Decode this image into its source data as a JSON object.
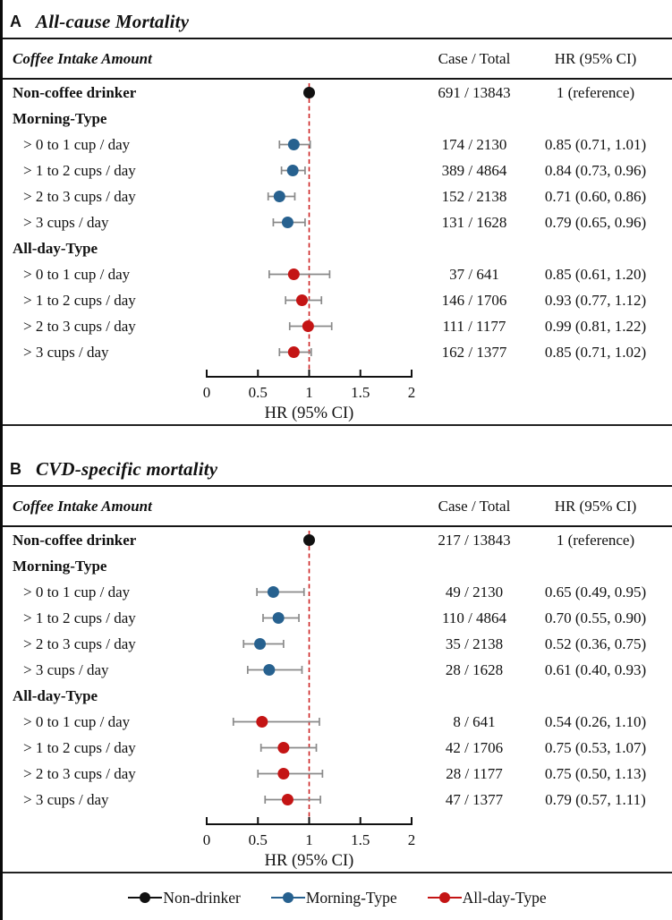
{
  "figure": {
    "colors": {
      "black": "#111111",
      "blue": "#27618f",
      "red": "#c41414",
      "ref_line": "#cc2222",
      "error_bar": "#8a8a8a",
      "axis": "#111111"
    }
  },
  "panels": [
    {
      "letter": "A",
      "title": "All-cause Mortality",
      "columns": {
        "label": "Coffee Intake Amount",
        "case": "Case / Total",
        "hr": "HR (95% CI)"
      },
      "rows": [
        {
          "label": "Non-coffee drinker",
          "case": "691 / 13843",
          "hr": "1 (reference)"
        },
        {
          "label": "Morning-Type"
        },
        {
          "label": "> 0 to 1 cup / day",
          "case": "174 / 2130",
          "hr": "0.85 (0.71, 1.01)"
        },
        {
          "label": "> 1 to 2 cups / day",
          "case": "389 / 4864",
          "hr": "0.84 (0.73, 0.96)"
        },
        {
          "label": "> 2 to 3 cups / day",
          "case": "152 / 2138",
          "hr": "0.71 (0.60, 0.86)"
        },
        {
          "label": "> 3 cups / day",
          "case": "131 / 1628",
          "hr": "0.79 (0.65, 0.96)"
        },
        {
          "label": "All-day-Type"
        },
        {
          "label": "> 0 to 1 cup / day",
          "case": "37 / 641",
          "hr": "0.85 (0.61, 1.20)"
        },
        {
          "label": "> 1 to 2 cups / day",
          "case": "146 / 1706",
          "hr": "0.93 (0.77, 1.12)"
        },
        {
          "label": "> 2 to 3 cups / day",
          "case": "111 / 1177",
          "hr": "0.99 (0.81, 1.22)"
        },
        {
          "label": "> 3 cups / day",
          "case": "162 / 1377",
          "hr": "0.85 (0.71, 1.02)"
        }
      ]
    },
    {
      "letter": "B",
      "title": "CVD-specific mortality",
      "columns": {
        "label": "Coffee Intake Amount",
        "case": "Case / Total",
        "hr": "HR (95% CI)"
      },
      "rows": [
        {
          "label": "Non-coffee drinker",
          "case": "217 / 13843",
          "hr": "1 (reference)"
        },
        {
          "label": "Morning-Type"
        },
        {
          "label": "> 0 to 1 cup / day",
          "case": "49 / 2130",
          "hr": "0.65 (0.49, 0.95)"
        },
        {
          "label": "> 1 to 2 cups / day",
          "case": "110 / 4864",
          "hr": "0.70 (0.55, 0.90)"
        },
        {
          "label": "> 2 to 3 cups / day",
          "case": "35 / 2138",
          "hr": "0.52 (0.36, 0.75)"
        },
        {
          "label": "> 3 cups / day",
          "case": "28 / 1628",
          "hr": "0.61 (0.40, 0.93)"
        },
        {
          "label": "All-day-Type"
        },
        {
          "label": "> 0 to 1 cup / day",
          "case": "8 / 641",
          "hr": "0.54 (0.26, 1.10)"
        },
        {
          "label": "> 1 to 2 cups / day",
          "case": "42 / 1706",
          "hr": "0.75 (0.53, 1.07)"
        },
        {
          "label": "> 2 to 3 cups / day",
          "case": "28 / 1177",
          "hr": "0.75 (0.50, 1.13)"
        },
        {
          "label": "> 3 cups / day",
          "case": "47 / 1377",
          "hr": "0.79 (0.57, 1.11)"
        }
      ]
    }
  ],
  "legend": {
    "items": [
      {
        "label": "Non-drinker",
        "color": "#111111"
      },
      {
        "label": "Morning-Type",
        "color": "#27618f"
      },
      {
        "label": "All-day-Type",
        "color": "#c41414"
      }
    ]
  },
  "chart_data": [
    {
      "type": "scatter",
      "subtype": "forest",
      "title": "A All-cause Mortality",
      "xlabel": "HR (95% CI)",
      "xlim": [
        0,
        2
      ],
      "xticks": [
        "0",
        "0.5",
        "1",
        "1.5",
        "2"
      ],
      "xtick_values": [
        0,
        0.5,
        1,
        1.5,
        2
      ],
      "reference_line": 1,
      "grid": false,
      "legend_position": "bottom",
      "series": [
        {
          "name": "Non-drinker",
          "color": "#111111",
          "points": [
            {
              "label": "Non-coffee drinker",
              "row_index": 0,
              "hr": 1,
              "lo": 1,
              "hi": 1
            }
          ]
        },
        {
          "name": "Morning-Type",
          "color": "#27618f",
          "points": [
            {
              "label": "> 0 to 1 cup / day",
              "row_index": 2,
              "hr": 0.85,
              "lo": 0.71,
              "hi": 1.01
            },
            {
              "label": "> 1 to 2 cups / day",
              "row_index": 3,
              "hr": 0.84,
              "lo": 0.73,
              "hi": 0.96
            },
            {
              "label": "> 2 to 3 cups / day",
              "row_index": 4,
              "hr": 0.71,
              "lo": 0.6,
              "hi": 0.86
            },
            {
              "label": "> 3 cups / day",
              "row_index": 5,
              "hr": 0.79,
              "lo": 0.65,
              "hi": 0.96
            }
          ]
        },
        {
          "name": "All-day-Type",
          "color": "#c41414",
          "points": [
            {
              "label": "> 0 to 1 cup / day",
              "row_index": 7,
              "hr": 0.85,
              "lo": 0.61,
              "hi": 1.2
            },
            {
              "label": "> 1 to 2 cups / day",
              "row_index": 8,
              "hr": 0.93,
              "lo": 0.77,
              "hi": 1.12
            },
            {
              "label": "> 2 to 3 cups / day",
              "row_index": 9,
              "hr": 0.99,
              "lo": 0.81,
              "hi": 1.22
            },
            {
              "label": "> 3 cups / day",
              "row_index": 10,
              "hr": 0.85,
              "lo": 0.71,
              "hi": 1.02
            }
          ]
        }
      ]
    },
    {
      "type": "scatter",
      "subtype": "forest",
      "title": "B CVD-specific mortality",
      "xlabel": "HR (95% CI)",
      "xlim": [
        0,
        2
      ],
      "xticks": [
        "0",
        "0.5",
        "1",
        "1.5",
        "2"
      ],
      "xtick_values": [
        0,
        0.5,
        1,
        1.5,
        2
      ],
      "reference_line": 1,
      "grid": false,
      "legend_position": "bottom",
      "series": [
        {
          "name": "Non-drinker",
          "color": "#111111",
          "points": [
            {
              "label": "Non-coffee drinker",
              "row_index": 0,
              "hr": 1,
              "lo": 1,
              "hi": 1
            }
          ]
        },
        {
          "name": "Morning-Type",
          "color": "#27618f",
          "points": [
            {
              "label": "> 0 to 1 cup / day",
              "row_index": 2,
              "hr": 0.65,
              "lo": 0.49,
              "hi": 0.95
            },
            {
              "label": "> 1 to 2 cups / day",
              "row_index": 3,
              "hr": 0.7,
              "lo": 0.55,
              "hi": 0.9
            },
            {
              "label": "> 2 to 3 cups / day",
              "row_index": 4,
              "hr": 0.52,
              "lo": 0.36,
              "hi": 0.75
            },
            {
              "label": "> 3 cups / day",
              "row_index": 5,
              "hr": 0.61,
              "lo": 0.4,
              "hi": 0.93
            }
          ]
        },
        {
          "name": "All-day-Type",
          "color": "#c41414",
          "points": [
            {
              "label": "> 0 to 1 cup / day",
              "row_index": 7,
              "hr": 0.54,
              "lo": 0.26,
              "hi": 1.1
            },
            {
              "label": "> 1 to 2 cups / day",
              "row_index": 8,
              "hr": 0.75,
              "lo": 0.53,
              "hi": 1.07
            },
            {
              "label": "> 2 to 3 cups / day",
              "row_index": 9,
              "hr": 0.75,
              "lo": 0.5,
              "hi": 1.13
            },
            {
              "label": "> 3 cups / day",
              "row_index": 10,
              "hr": 0.79,
              "lo": 0.57,
              "hi": 1.11
            }
          ]
        }
      ]
    }
  ]
}
